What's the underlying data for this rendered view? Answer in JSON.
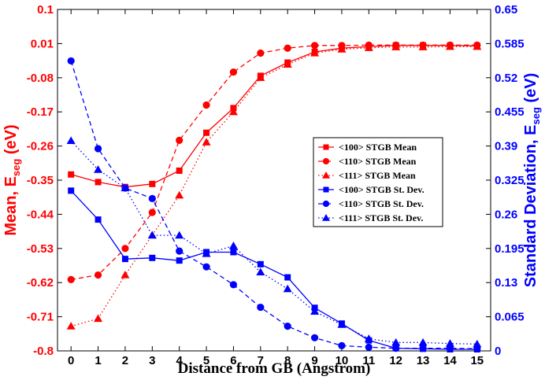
{
  "chart_data": {
    "type": "line",
    "xlabel": "Distance from GB (Angstrom)",
    "ylabel_left": "Mean, E",
    "ylabel_left_sub": "seg",
    "ylabel_left_unit": " (eV)",
    "ylabel_right": "Standard Deviation, E",
    "ylabel_right_sub": "seg",
    "ylabel_right_unit": " (eV)",
    "x": [
      0,
      1,
      2,
      3,
      4,
      5,
      6,
      7,
      8,
      9,
      10,
      11,
      12,
      13,
      14,
      15
    ],
    "xlim": [
      -0.5,
      15.5
    ],
    "x_ticks": [
      "0",
      "1",
      "2",
      "3",
      "4",
      "5",
      "6",
      "7",
      "8",
      "9",
      "10",
      "11",
      "12",
      "13",
      "14",
      "15"
    ],
    "y_left_lim": [
      -0.8,
      0.1
    ],
    "y_left_ticks": [
      "0.1",
      "0.01",
      "-0.08",
      "-0.17",
      "-0.26",
      "-0.35",
      "-0.44",
      "-0.53",
      "-0.62",
      "-0.71",
      "-0.8"
    ],
    "y_left_tick_values": [
      0.1,
      0.01,
      -0.08,
      -0.17,
      -0.26,
      -0.35,
      -0.44,
      -0.53,
      -0.62,
      -0.71,
      -0.8
    ],
    "y_right_lim": [
      0,
      0.65
    ],
    "y_right_ticks": [
      "0.65",
      "0.585",
      "0.52",
      "0.455",
      "0.39",
      "0.325",
      "0.26",
      "0.195",
      "0.13",
      "0.065",
      "0"
    ],
    "y_right_tick_values": [
      0.65,
      0.585,
      0.52,
      0.455,
      0.39,
      0.325,
      0.26,
      0.195,
      0.13,
      0.065,
      0
    ],
    "colors": {
      "mean": "#ff0000",
      "stdev": "#0000ff",
      "axis": "#000000"
    },
    "legend_position": "right-center",
    "series": [
      {
        "name": "<100> STGB Mean",
        "axis": "left",
        "color": "#ff0000",
        "line": "solid",
        "marker": "square",
        "values": [
          -0.335,
          -0.355,
          -0.368,
          -0.36,
          -0.325,
          -0.225,
          -0.16,
          -0.075,
          -0.04,
          -0.012,
          -0.002,
          0.002,
          0.005,
          0.005,
          0.005,
          0.004
        ]
      },
      {
        "name": "<110> STGB Mean",
        "axis": "left",
        "color": "#ff0000",
        "line": "dashed",
        "marker": "circle",
        "values": [
          -0.612,
          -0.6,
          -0.53,
          -0.435,
          -0.245,
          -0.152,
          -0.065,
          -0.015,
          -0.002,
          0.005,
          0.005,
          0.006,
          0.006,
          0.006,
          0.006,
          0.006
        ]
      },
      {
        "name": "<111> STGB Mean",
        "axis": "left",
        "color": "#ff0000",
        "line": "dotted",
        "marker": "triangle",
        "values": [
          -0.735,
          -0.715,
          -0.6,
          -0.495,
          -0.39,
          -0.25,
          -0.17,
          -0.08,
          -0.045,
          -0.015,
          -0.005,
          -0.001,
          0.001,
          0.001,
          0.002,
          0.002
        ]
      },
      {
        "name": "<100> STGB St. Dev.",
        "axis": "right",
        "color": "#0000ff",
        "line": "solid",
        "marker": "square",
        "values": [
          0.305,
          0.25,
          0.175,
          0.177,
          0.172,
          0.188,
          0.188,
          0.165,
          0.14,
          0.082,
          0.052,
          0.02,
          0.005,
          0.004,
          0.003,
          0.003
        ]
      },
      {
        "name": "<110> STGB St. Dev.",
        "axis": "right",
        "color": "#0000ff",
        "line": "dashed",
        "marker": "circle",
        "values": [
          0.552,
          0.385,
          0.31,
          0.29,
          0.19,
          0.16,
          0.126,
          0.083,
          0.047,
          0.025,
          0.01,
          0.007,
          0.005,
          0.005,
          0.005,
          0.004
        ]
      },
      {
        "name": "<111> STGB St. Dev.",
        "axis": "right",
        "color": "#0000ff",
        "line": "dotted",
        "marker": "triangle",
        "values": [
          0.4,
          0.345,
          0.31,
          0.22,
          0.22,
          0.185,
          0.2,
          0.15,
          0.118,
          0.075,
          0.05,
          0.023,
          0.016,
          0.016,
          0.014,
          0.013
        ]
      }
    ]
  }
}
